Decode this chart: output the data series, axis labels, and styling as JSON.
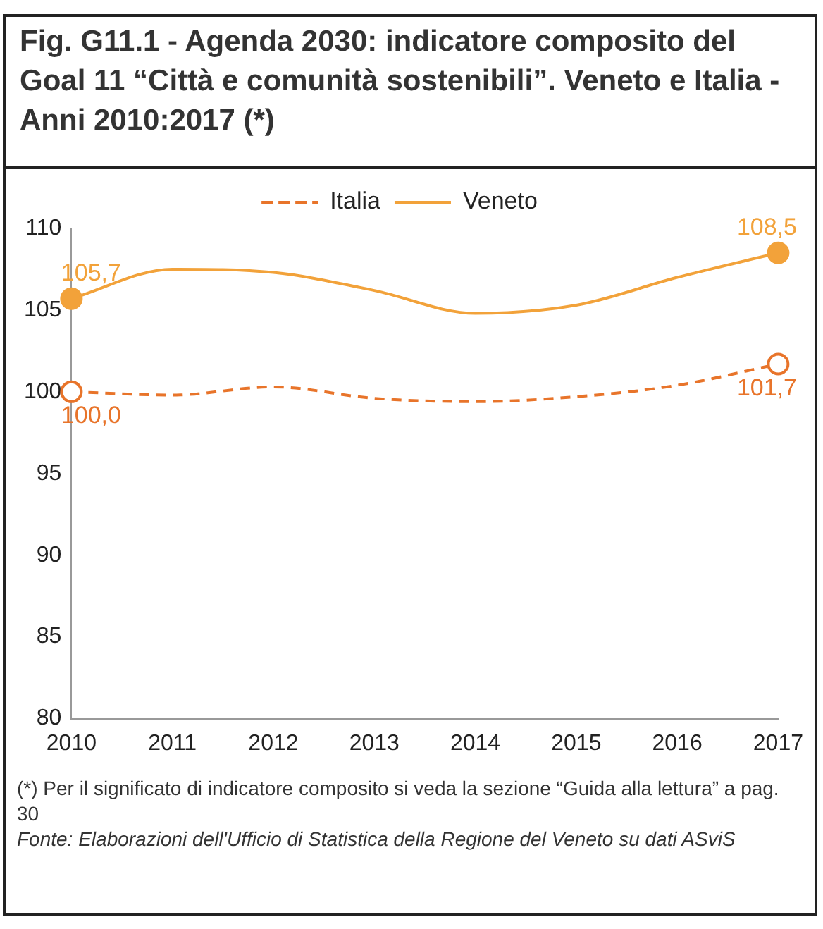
{
  "chart_data": {
    "type": "line",
    "title": "Fig. G11.1 - Agenda 2030: indicatore composito del Goal 11 “Città e comunità sostenibili”. Veneto e Italia - Anni 2010:2017 (*)",
    "categories": [
      "2010",
      "2011",
      "2012",
      "2013",
      "2014",
      "2015",
      "2016",
      "2017"
    ],
    "series": [
      {
        "name": "Italia",
        "color": "#e8742a",
        "line_style": "dashed",
        "values": [
          100.0,
          99.8,
          100.3,
          99.6,
          99.4,
          99.7,
          100.4,
          101.7
        ],
        "value_labels": [
          "100,0",
          null,
          null,
          null,
          null,
          null,
          null,
          "101,7"
        ]
      },
      {
        "name": "Veneto",
        "color": "#f2a23a",
        "line_style": "solid",
        "values": [
          105.7,
          107.5,
          107.3,
          106.2,
          104.8,
          105.3,
          107.0,
          108.5
        ],
        "value_labels": [
          "105,7",
          null,
          null,
          null,
          null,
          null,
          null,
          "108,5"
        ]
      }
    ],
    "ylim": [
      80,
      110
    ],
    "yticks": [
      80,
      85,
      90,
      95,
      100,
      105,
      110
    ],
    "grid": false,
    "legend": "top",
    "annotations": [
      "(*) Per il significato di indicatore composito si veda la sezione “Guida alla lettura” a pag. 30",
      "Fonte: Elaborazioni dell'Ufficio di Statistica della Regione del Veneto su dati ASviS"
    ]
  }
}
